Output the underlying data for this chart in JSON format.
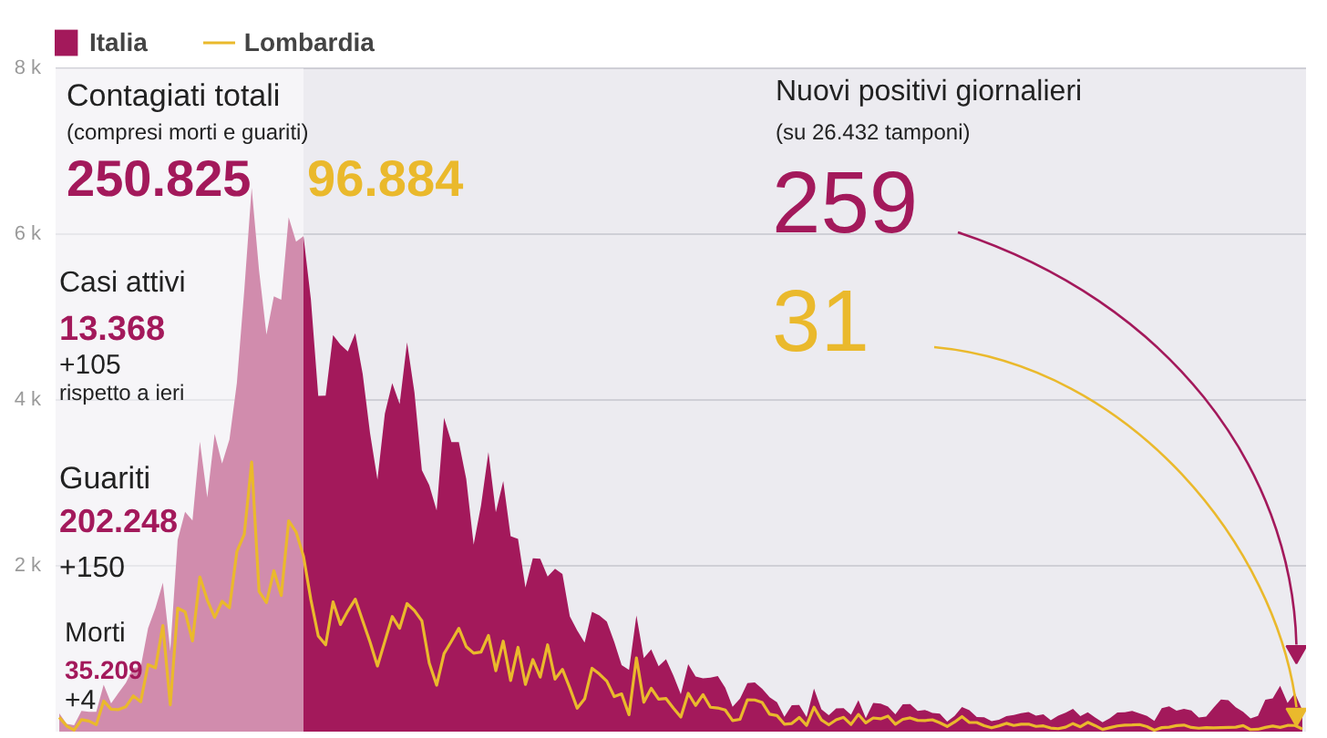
{
  "chart_data": {
    "type": "area",
    "categories": [
      null,
      null,
      null,
      null,
      null,
      null,
      null,
      null,
      null,
      null,
      null,
      null,
      null,
      null,
      null,
      null,
      null,
      null,
      null,
      null,
      null,
      null,
      null,
      null,
      null,
      null,
      null,
      null,
      null,
      null,
      null,
      null,
      null,
      null,
      null,
      null,
      null,
      null,
      null,
      null,
      null,
      null,
      null,
      null,
      null,
      null,
      null,
      null,
      null,
      null,
      null,
      null,
      null,
      null,
      null,
      null,
      null,
      null,
      null,
      null,
      null,
      null,
      null,
      null,
      null,
      null,
      null,
      null,
      null,
      null,
      null,
      null,
      null,
      null,
      null,
      null,
      null,
      null,
      null,
      null,
      null,
      null,
      null,
      null,
      null,
      null,
      null,
      null,
      null,
      null,
      null,
      null,
      null,
      null,
      null,
      null,
      null,
      null,
      null,
      null,
      null,
      null,
      null,
      null,
      null,
      null,
      null,
      null,
      null,
      null,
      null,
      null,
      null,
      null,
      null,
      null,
      null,
      null,
      null,
      null,
      null,
      null,
      null,
      null,
      null,
      null,
      null,
      null,
      null,
      null,
      null,
      null,
      null,
      null,
      null,
      null,
      null,
      null,
      null,
      null,
      null,
      null,
      null,
      null,
      null,
      null,
      null,
      null,
      null,
      null,
      null,
      null,
      null,
      null,
      null,
      null,
      null,
      null,
      null,
      null,
      null,
      null,
      null,
      null,
      null,
      null,
      null,
      null,
      null
    ],
    "series": [
      {
        "name": "Italia",
        "color": "#a3195b",
        "values": [
          221,
          93,
          78,
          250,
          238,
          240,
          566,
          342,
          466,
          587,
          769,
          778,
          1247,
          1492,
          1797,
          977,
          2313,
          2651,
          2547,
          3497,
          2823,
          3590,
          3233,
          3526,
          4207,
          5322,
          6557,
          5560,
          4789,
          5249,
          5210,
          6203,
          5909,
          5974,
          5217,
          4050,
          4053,
          4782,
          4668,
          4585,
          4805,
          4316,
          3599,
          3039,
          3836,
          4204,
          3951,
          4694,
          4092,
          3153,
          2972,
          2667,
          3786,
          3493,
          3491,
          3047,
          2256,
          2729,
          3370,
          2646,
          3021,
          2357,
          2324,
          1739,
          2091,
          2086,
          1872,
          1965,
          1900,
          1389,
          1221,
          1075,
          1444,
          1401,
          1327,
          1083,
          802,
          744,
          1402,
          888,
          992,
          789,
          875,
          675,
          451,
          813,
          665,
          642,
          652,
          669,
          531,
          300,
          397,
          584,
          593,
          516,
          416,
          355,
          178,
          318,
          321,
          177,
          518,
          270,
          197,
          280,
          283,
          202,
          379,
          163,
          346,
          338,
          301,
          210,
          329,
          333,
          251,
          262,
          224,
          218,
          122,
          190,
          296,
          259,
          175,
          174,
          126,
          142,
          187,
          201,
          223,
          235,
          192,
          208,
          138,
          193,
          229,
          276,
          188,
          234,
          169,
          114,
          162,
          230,
          233,
          249,
          219,
          190,
          129,
          282,
          306,
          252,
          275,
          255,
          170,
          181,
          289,
          386,
          379,
          295,
          239,
          159,
          190,
          384,
          402,
          552,
          347,
          463,
          259
        ]
      },
      {
        "name": "Lombardia",
        "type": "line",
        "color": "#eab92c",
        "values": [
          172,
          68,
          18,
          145,
          128,
          84,
          369,
          270,
          266,
          300,
          431,
          361,
          808,
          769,
          1280,
          322,
          1489,
          1445,
          1095,
          1865,
          1587,
          1377,
          1571,
          1493,
          2171,
          2380,
          3251,
          1691,
          1555,
          1942,
          1643,
          2543,
          2409,
          2117,
          1592,
          1154,
          1047,
          1565,
          1292,
          1455,
          1598,
          1337,
          1079,
          791,
          1089,
          1388,
          1246,
          1544,
          1460,
          1337,
          827,
          560,
          941,
          1091,
          1246,
          1025,
          946,
          960,
          1161,
          735,
          1091,
          617,
          1017,
          569,
          869,
          657,
          1047,
          633,
          751,
          526,
          282,
          395,
          764,
          694,
          608,
          423,
          455,
          204,
          889,
          354,
          522,
          392,
          399,
          282,
          175,
          462,
          316,
          447,
          294,
          285,
          261,
          134,
          148,
          384,
          382,
          351,
          210,
          194,
          90,
          98,
          171,
          76,
          294,
          141,
          82,
          143,
          172,
          86,
          208,
          105,
          165,
          155,
          187,
          89,
          148,
          166,
          136,
          134,
          143,
          107,
          63,
          116,
          182,
          110,
          110,
          71,
          46,
          70,
          100,
          74,
          89,
          90,
          63,
          69,
          43,
          36,
          53,
          97,
          58,
          112,
          72,
          26,
          48,
          69,
          79,
          81,
          85,
          61,
          17,
          48,
          54,
          73,
          79,
          50,
          41,
          48,
          45,
          48,
          50,
          53,
          73,
          25,
          28,
          51,
          68,
          51,
          75,
          74,
          31
        ]
      }
    ],
    "ylim": [
      0,
      8000
    ],
    "yticks": [
      {
        "value": 2000,
        "label": "2 k"
      },
      {
        "value": 4000,
        "label": "4 k"
      },
      {
        "value": 6000,
        "label": "6 k"
      },
      {
        "value": 8000,
        "label": "8 k"
      }
    ],
    "grid": "y",
    "legend": "top",
    "tick_labels": "y",
    "annotations": [
      "Contagiati totali",
      "(compresi morti e guariti)",
      "250.825",
      "96.884",
      "Casi attivi",
      "13.368",
      "+105",
      "rispetto a ieri",
      "Guariti",
      "202.248",
      "+150",
      "Morti",
      "35.209",
      "+4",
      "Nuovi positivi giornalieri",
      "(su 26.432 tamponi)",
      "259",
      "31"
    ]
  }
}
